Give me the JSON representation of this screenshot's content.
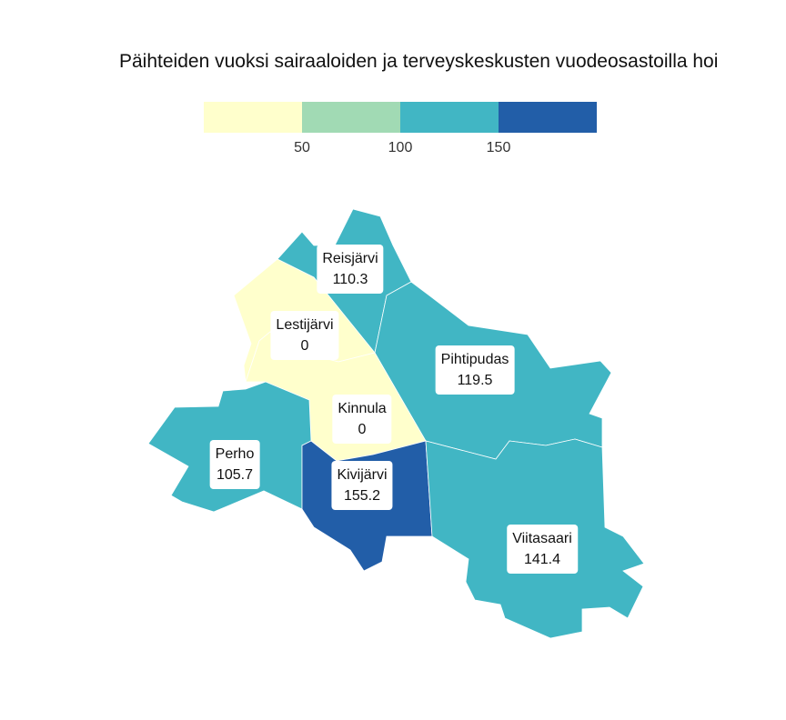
{
  "title": "Päihteiden vuoksi sairaaloiden ja terveyskeskusten vuodeosastoilla hoi",
  "legend": {
    "bins": [
      {
        "color": "#ffffcc"
      },
      {
        "color": "#a1dab4"
      },
      {
        "color": "#41b6c4"
      },
      {
        "color": "#225ea8"
      }
    ],
    "ticks": [
      "50",
      "100",
      "150"
    ]
  },
  "regions": [
    {
      "name": "Reisjärvi",
      "value": "110.3",
      "color": "#41b6c4"
    },
    {
      "name": "Lestijärvi",
      "value": "0",
      "color": "#ffffcc"
    },
    {
      "name": "Pihtipudas",
      "value": "119.5",
      "color": "#41b6c4"
    },
    {
      "name": "Kinnula",
      "value": "0",
      "color": "#ffffcc"
    },
    {
      "name": "Perho",
      "value": "105.7",
      "color": "#41b6c4"
    },
    {
      "name": "Kivijärvi",
      "value": "155.2",
      "color": "#225ea8"
    },
    {
      "name": "Viitasaari",
      "value": "141.4",
      "color": "#41b6c4"
    }
  ]
}
